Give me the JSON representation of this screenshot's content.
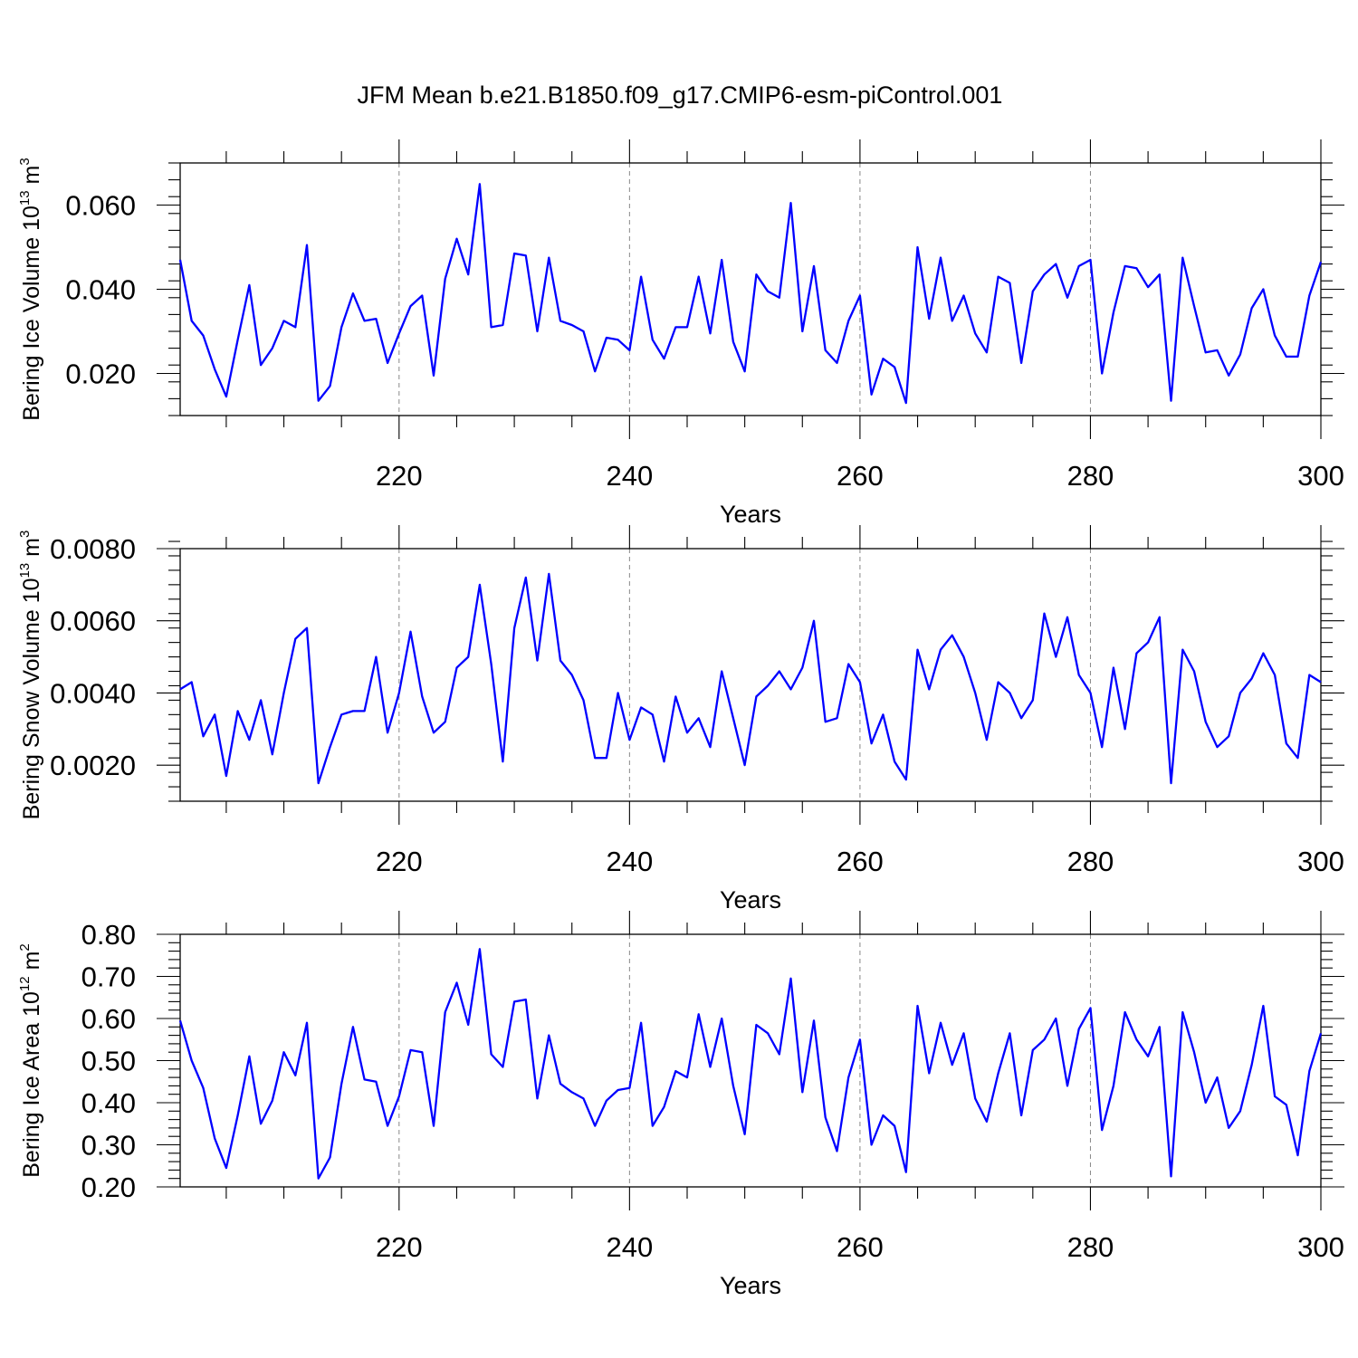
{
  "figure_title": "JFM Mean b.e21.B1850.f09_g17.CMIP6-esm-piControl.001",
  "colors": {
    "series": "#0000ff",
    "axes": "#000000",
    "grid": "#888888"
  },
  "chart_data": [
    {
      "type": "line",
      "title": "JFM Mean b.e21.B1850.f09_g17.CMIP6-esm-piControl.001",
      "ylabel": {
        "main": "Bering Ice Volume 10",
        "exp": "13",
        "unit": "m",
        "unit_exp": "3"
      },
      "xlabel": "Years",
      "xlim": [
        201,
        300
      ],
      "ylim": [
        0.01,
        0.07
      ],
      "xticks": [
        220,
        240,
        260,
        280,
        300
      ],
      "xtick_labels": [
        "220",
        "240",
        "260",
        "280",
        "300"
      ],
      "yticks": [
        0.02,
        0.04,
        0.06
      ],
      "ytick_labels": [
        "0.020",
        "0.040",
        "0.060"
      ],
      "grid": "vertical dashed at major x ticks",
      "series": [
        {
          "name": "Bering Ice Volume",
          "x_start": 201,
          "x_step": 1,
          "values": [
            0.047,
            0.0325,
            0.029,
            0.021,
            0.0145,
            0.028,
            0.041,
            0.022,
            0.026,
            0.0325,
            0.031,
            0.0505,
            0.0135,
            0.017,
            0.031,
            0.039,
            0.0325,
            0.033,
            0.0225,
            0.0295,
            0.036,
            0.0385,
            0.0195,
            0.0425,
            0.052,
            0.0435,
            0.065,
            0.031,
            0.0315,
            0.0485,
            0.048,
            0.03,
            0.0475,
            0.0325,
            0.0315,
            0.03,
            0.0205,
            0.0285,
            0.028,
            0.0255,
            0.043,
            0.028,
            0.0235,
            0.031,
            0.031,
            0.043,
            0.0295,
            0.047,
            0.0275,
            0.0205,
            0.0435,
            0.0395,
            0.038,
            0.0605,
            0.03,
            0.0455,
            0.0255,
            0.0225,
            0.0325,
            0.0385,
            0.015,
            0.0235,
            0.0215,
            0.013,
            0.05,
            0.033,
            0.0475,
            0.0325,
            0.0385,
            0.0295,
            0.025,
            0.043,
            0.0415,
            0.0225,
            0.0395,
            0.0435,
            0.046,
            0.038,
            0.0455,
            0.047,
            0.02,
            0.0345,
            0.0455,
            0.045,
            0.0405,
            0.0435,
            0.0135,
            0.0475,
            0.036,
            0.025,
            0.0255,
            0.0195,
            0.0245,
            0.0355,
            0.04,
            0.029,
            0.024,
            0.024,
            0.0385,
            0.0465
          ]
        }
      ]
    },
    {
      "type": "line",
      "ylabel": {
        "main": "Bering Snow Volume 10",
        "exp": "13",
        "unit": "m",
        "unit_exp": "3"
      },
      "xlabel": "Years",
      "xlim": [
        201,
        300
      ],
      "ylim": [
        0.001,
        0.008
      ],
      "xticks": [
        220,
        240,
        260,
        280,
        300
      ],
      "xtick_labels": [
        "220",
        "240",
        "260",
        "280",
        "300"
      ],
      "yticks": [
        0.002,
        0.004,
        0.006,
        0.008
      ],
      "ytick_labels": [
        "0.0020",
        "0.0040",
        "0.0060",
        "0.0080"
      ],
      "grid": "vertical dashed at major x ticks",
      "series": [
        {
          "name": "Bering Snow Volume",
          "x_start": 201,
          "x_step": 1,
          "values": [
            0.0041,
            0.0043,
            0.0028,
            0.0034,
            0.0017,
            0.0035,
            0.0027,
            0.0038,
            0.0023,
            0.004,
            0.0055,
            0.0058,
            0.0015,
            0.0025,
            0.0034,
            0.0035,
            0.0035,
            0.005,
            0.0029,
            0.004,
            0.0057,
            0.0039,
            0.0029,
            0.0032,
            0.0047,
            0.005,
            0.007,
            0.0048,
            0.0021,
            0.0058,
            0.0072,
            0.0049,
            0.0073,
            0.0049,
            0.0045,
            0.0038,
            0.0022,
            0.0022,
            0.004,
            0.0027,
            0.0036,
            0.0034,
            0.0021,
            0.0039,
            0.0029,
            0.0033,
            0.0025,
            0.0046,
            0.0033,
            0.002,
            0.0039,
            0.0042,
            0.0046,
            0.0041,
            0.0047,
            0.006,
            0.0032,
            0.0033,
            0.0048,
            0.0043,
            0.0026,
            0.0034,
            0.0021,
            0.0016,
            0.0052,
            0.0041,
            0.0052,
            0.0056,
            0.005,
            0.004,
            0.0027,
            0.0043,
            0.004,
            0.0033,
            0.0038,
            0.0062,
            0.005,
            0.0061,
            0.0045,
            0.004,
            0.0025,
            0.0047,
            0.003,
            0.0051,
            0.0054,
            0.0061,
            0.0015,
            0.0052,
            0.0046,
            0.0032,
            0.0025,
            0.0028,
            0.004,
            0.0044,
            0.0051,
            0.0045,
            0.0026,
            0.0022,
            0.0045,
            0.0043
          ]
        }
      ]
    },
    {
      "type": "line",
      "ylabel": {
        "main": "Bering Ice Area 10",
        "exp": "12",
        "unit": "m",
        "unit_exp": "2"
      },
      "xlabel": "Years",
      "xlim": [
        201,
        300
      ],
      "ylim": [
        0.2,
        0.8
      ],
      "xticks": [
        220,
        240,
        260,
        280,
        300
      ],
      "xtick_labels": [
        "220",
        "240",
        "260",
        "280",
        "300"
      ],
      "yticks": [
        0.2,
        0.3,
        0.4,
        0.5,
        0.6,
        0.7,
        0.8
      ],
      "ytick_labels": [
        "0.20",
        "0.30",
        "0.40",
        "0.50",
        "0.60",
        "0.70",
        "0.80"
      ],
      "grid": "vertical dashed at major x ticks",
      "series": [
        {
          "name": "Bering Ice Area",
          "x_start": 201,
          "x_step": 1,
          "values": [
            0.595,
            0.5,
            0.435,
            0.315,
            0.245,
            0.37,
            0.51,
            0.35,
            0.405,
            0.52,
            0.465,
            0.59,
            0.22,
            0.27,
            0.445,
            0.58,
            0.455,
            0.45,
            0.345,
            0.415,
            0.525,
            0.52,
            0.345,
            0.615,
            0.685,
            0.585,
            0.765,
            0.515,
            0.485,
            0.64,
            0.645,
            0.41,
            0.56,
            0.445,
            0.425,
            0.41,
            0.345,
            0.405,
            0.43,
            0.435,
            0.59,
            0.345,
            0.39,
            0.475,
            0.46,
            0.61,
            0.485,
            0.6,
            0.44,
            0.325,
            0.585,
            0.565,
            0.515,
            0.695,
            0.425,
            0.595,
            0.365,
            0.285,
            0.46,
            0.55,
            0.3,
            0.37,
            0.345,
            0.235,
            0.63,
            0.47,
            0.59,
            0.49,
            0.565,
            0.41,
            0.355,
            0.47,
            0.565,
            0.37,
            0.525,
            0.55,
            0.6,
            0.44,
            0.575,
            0.625,
            0.335,
            0.44,
            0.615,
            0.55,
            0.51,
            0.58,
            0.225,
            0.615,
            0.52,
            0.4,
            0.46,
            0.34,
            0.38,
            0.49,
            0.63,
            0.415,
            0.395,
            0.275,
            0.475,
            0.565
          ]
        }
      ]
    }
  ]
}
